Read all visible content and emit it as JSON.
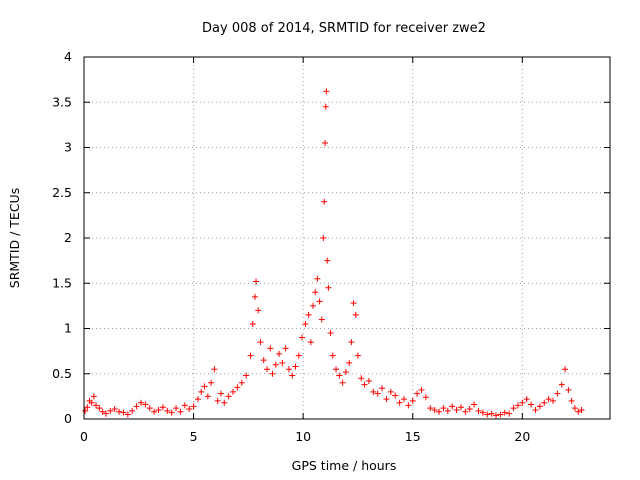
{
  "chart_data": {
    "type": "scatter",
    "title": "Day 008 of 2014, SRMTID for receiver zwe2",
    "xlabel": "GPS time / hours",
    "ylabel": "SRMTID / TECUs",
    "xlim": [
      0,
      24
    ],
    "ylim": [
      0,
      4
    ],
    "xticks": [
      0,
      5,
      10,
      15,
      20
    ],
    "xtick_labels": [
      "0",
      "5",
      "10",
      "15",
      "20"
    ],
    "yticks": [
      0,
      0.5,
      1,
      1.5,
      2,
      2.5,
      3,
      3.5,
      4
    ],
    "ytick_labels": [
      "0",
      "0.5",
      "1",
      "1.5",
      "2",
      "2.5",
      "3",
      "3.5",
      "4"
    ],
    "grid": true,
    "marker": "plus",
    "color": "#ff0000",
    "series": [
      {
        "name": "zwe2",
        "points": [
          [
            0.05,
            0.09
          ],
          [
            0.15,
            0.13
          ],
          [
            0.25,
            0.2
          ],
          [
            0.35,
            0.18
          ],
          [
            0.45,
            0.25
          ],
          [
            0.55,
            0.15
          ],
          [
            0.7,
            0.12
          ],
          [
            0.85,
            0.08
          ],
          [
            1.0,
            0.06
          ],
          [
            1.2,
            0.09
          ],
          [
            1.4,
            0.11
          ],
          [
            1.6,
            0.08
          ],
          [
            1.8,
            0.07
          ],
          [
            2.0,
            0.05
          ],
          [
            2.2,
            0.09
          ],
          [
            2.4,
            0.14
          ],
          [
            2.6,
            0.18
          ],
          [
            2.8,
            0.16
          ],
          [
            3.0,
            0.12
          ],
          [
            3.2,
            0.08
          ],
          [
            3.4,
            0.1
          ],
          [
            3.6,
            0.13
          ],
          [
            3.8,
            0.09
          ],
          [
            4.0,
            0.07
          ],
          [
            4.2,
            0.12
          ],
          [
            4.4,
            0.08
          ],
          [
            4.6,
            0.15
          ],
          [
            4.8,
            0.11
          ],
          [
            5.0,
            0.14
          ],
          [
            5.2,
            0.22
          ],
          [
            5.35,
            0.3
          ],
          [
            5.5,
            0.36
          ],
          [
            5.65,
            0.25
          ],
          [
            5.8,
            0.4
          ],
          [
            5.95,
            0.55
          ],
          [
            6.1,
            0.2
          ],
          [
            6.25,
            0.28
          ],
          [
            6.4,
            0.18
          ],
          [
            6.6,
            0.25
          ],
          [
            6.8,
            0.3
          ],
          [
            7.0,
            0.35
          ],
          [
            7.2,
            0.4
          ],
          [
            7.4,
            0.48
          ],
          [
            7.6,
            0.7
          ],
          [
            7.7,
            1.05
          ],
          [
            7.8,
            1.35
          ],
          [
            7.85,
            1.52
          ],
          [
            7.95,
            1.2
          ],
          [
            8.05,
            0.85
          ],
          [
            8.2,
            0.65
          ],
          [
            8.35,
            0.55
          ],
          [
            8.5,
            0.78
          ],
          [
            8.6,
            0.5
          ],
          [
            8.75,
            0.6
          ],
          [
            8.9,
            0.72
          ],
          [
            9.05,
            0.62
          ],
          [
            9.2,
            0.78
          ],
          [
            9.35,
            0.55
          ],
          [
            9.5,
            0.48
          ],
          [
            9.65,
            0.58
          ],
          [
            9.8,
            0.7
          ],
          [
            9.95,
            0.9
          ],
          [
            10.1,
            1.05
          ],
          [
            10.25,
            1.15
          ],
          [
            10.35,
            0.85
          ],
          [
            10.45,
            1.25
          ],
          [
            10.55,
            1.4
          ],
          [
            10.65,
            1.55
          ],
          [
            10.75,
            1.3
          ],
          [
            10.85,
            1.1
          ],
          [
            10.92,
            2.0
          ],
          [
            10.96,
            2.4
          ],
          [
            11.0,
            3.05
          ],
          [
            11.03,
            3.45
          ],
          [
            11.06,
            3.62
          ],
          [
            11.1,
            1.75
          ],
          [
            11.15,
            1.45
          ],
          [
            11.25,
            0.95
          ],
          [
            11.35,
            0.7
          ],
          [
            11.5,
            0.55
          ],
          [
            11.65,
            0.48
          ],
          [
            11.8,
            0.4
          ],
          [
            11.95,
            0.52
          ],
          [
            12.1,
            0.62
          ],
          [
            12.2,
            0.85
          ],
          [
            12.3,
            1.28
          ],
          [
            12.4,
            1.15
          ],
          [
            12.5,
            0.7
          ],
          [
            12.65,
            0.45
          ],
          [
            12.8,
            0.38
          ],
          [
            13.0,
            0.42
          ],
          [
            13.2,
            0.3
          ],
          [
            13.4,
            0.28
          ],
          [
            13.6,
            0.34
          ],
          [
            13.8,
            0.22
          ],
          [
            14.0,
            0.3
          ],
          [
            14.2,
            0.26
          ],
          [
            14.4,
            0.18
          ],
          [
            14.6,
            0.22
          ],
          [
            14.8,
            0.15
          ],
          [
            15.0,
            0.2
          ],
          [
            15.2,
            0.28
          ],
          [
            15.4,
            0.32
          ],
          [
            15.6,
            0.24
          ],
          [
            15.8,
            0.12
          ],
          [
            16.0,
            0.1
          ],
          [
            16.2,
            0.08
          ],
          [
            16.4,
            0.12
          ],
          [
            16.6,
            0.09
          ],
          [
            16.8,
            0.14
          ],
          [
            17.0,
            0.1
          ],
          [
            17.2,
            0.13
          ],
          [
            17.4,
            0.08
          ],
          [
            17.6,
            0.11
          ],
          [
            17.8,
            0.16
          ],
          [
            18.0,
            0.09
          ],
          [
            18.2,
            0.07
          ],
          [
            18.4,
            0.05
          ],
          [
            18.6,
            0.06
          ],
          [
            18.8,
            0.04
          ],
          [
            19.0,
            0.05
          ],
          [
            19.2,
            0.07
          ],
          [
            19.4,
            0.06
          ],
          [
            19.6,
            0.12
          ],
          [
            19.8,
            0.15
          ],
          [
            20.0,
            0.18
          ],
          [
            20.2,
            0.22
          ],
          [
            20.4,
            0.16
          ],
          [
            20.6,
            0.1
          ],
          [
            20.8,
            0.14
          ],
          [
            21.0,
            0.18
          ],
          [
            21.2,
            0.22
          ],
          [
            21.4,
            0.2
          ],
          [
            21.6,
            0.28
          ],
          [
            21.8,
            0.38
          ],
          [
            21.95,
            0.55
          ],
          [
            22.1,
            0.32
          ],
          [
            22.25,
            0.2
          ],
          [
            22.4,
            0.12
          ],
          [
            22.55,
            0.08
          ],
          [
            22.7,
            0.1
          ]
        ]
      }
    ]
  }
}
